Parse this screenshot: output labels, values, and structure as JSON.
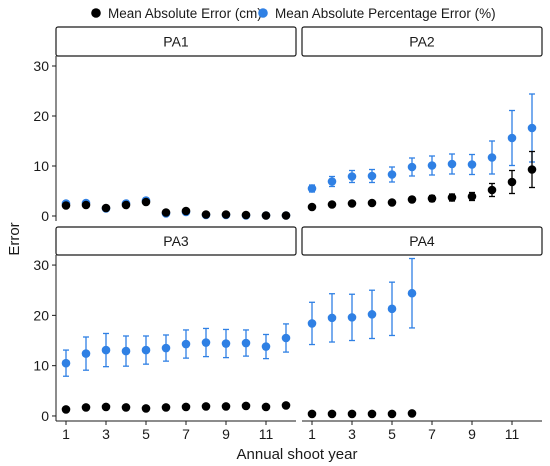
{
  "chart_data": {
    "type": "scatter",
    "xlabel": "Annual shoot year",
    "ylabel": "Error",
    "ylim": [
      -1,
      32
    ],
    "xlim": [
      0.5,
      12.5
    ],
    "y_ticks": [
      0,
      10,
      20,
      30
    ],
    "x_ticks": [
      1,
      3,
      5,
      7,
      9,
      11
    ],
    "legend_position": "top",
    "series": [
      {
        "name": "Mean Absolute Error (cm)",
        "color": "#000000"
      },
      {
        "name": "Mean Absolute Percentage Error (%)",
        "color": "#2f80e4"
      }
    ],
    "panels": [
      {
        "label": "PA1",
        "mae": {
          "x": [
            1,
            2,
            3,
            4,
            5,
            6,
            7,
            8,
            9,
            10,
            11,
            12
          ],
          "y": [
            2.1,
            2.2,
            1.6,
            2.2,
            2.8,
            0.7,
            1.0,
            0.3,
            0.3,
            0.2,
            0.1,
            0.1
          ],
          "err": [
            0,
            0,
            0,
            0,
            0,
            0,
            0,
            0,
            0,
            0,
            0,
            0
          ]
        },
        "mape": {
          "x": [
            1,
            2,
            3,
            4,
            5,
            6,
            7,
            8,
            9,
            10,
            11,
            12
          ],
          "y": [
            2.5,
            2.6,
            1.5,
            2.5,
            3.1,
            0.5,
            0.8,
            0.2,
            0.2,
            0.1,
            0.1,
            0.1
          ],
          "err": [
            0.3,
            0.3,
            0.3,
            0.4,
            0.5,
            0.4,
            0.4,
            0.2,
            0.2,
            0.1,
            0.1,
            0.1
          ]
        }
      },
      {
        "label": "PA2",
        "mae": {
          "x": [
            1,
            2,
            3,
            4,
            5,
            6,
            7,
            8,
            9,
            10,
            11,
            12
          ],
          "y": [
            1.8,
            2.3,
            2.5,
            2.6,
            2.7,
            3.3,
            3.5,
            3.7,
            3.9,
            5.2,
            6.8,
            9.3
          ],
          "err": [
            0.2,
            0.3,
            0.3,
            0.3,
            0.3,
            0.5,
            0.6,
            0.7,
            0.8,
            1.3,
            2.3,
            3.6
          ]
        },
        "mape": {
          "x": [
            1,
            2,
            3,
            4,
            5,
            6,
            7,
            8,
            9,
            10,
            11,
            12
          ],
          "y": [
            5.5,
            6.9,
            7.9,
            8.0,
            8.3,
            9.8,
            10.1,
            10.4,
            10.3,
            11.7,
            15.6,
            17.6
          ],
          "err": [
            0.7,
            1.0,
            1.2,
            1.3,
            1.5,
            1.8,
            1.9,
            2.0,
            2.0,
            3.3,
            5.5,
            6.8
          ]
        }
      },
      {
        "label": "PA3",
        "mae": {
          "x": [
            1,
            2,
            3,
            4,
            5,
            6,
            7,
            8,
            9,
            10,
            11,
            12
          ],
          "y": [
            1.3,
            1.7,
            1.8,
            1.7,
            1.5,
            1.7,
            1.8,
            1.9,
            1.9,
            2.0,
            1.8,
            2.1
          ],
          "err": [
            0,
            0,
            0,
            0,
            0,
            0,
            0,
            0,
            0,
            0,
            0,
            0
          ]
        },
        "mape": {
          "x": [
            1,
            2,
            3,
            4,
            5,
            6,
            7,
            8,
            9,
            10,
            11,
            12
          ],
          "y": [
            10.5,
            12.4,
            13.1,
            12.9,
            13.1,
            13.5,
            14.3,
            14.6,
            14.4,
            14.5,
            13.8,
            15.5
          ],
          "err": [
            2.6,
            3.3,
            3.3,
            3.0,
            2.8,
            2.6,
            2.8,
            2.8,
            2.8,
            2.6,
            2.4,
            2.8
          ]
        }
      },
      {
        "label": "PA4",
        "mae": {
          "x": [
            1,
            2,
            3,
            4,
            5,
            6
          ],
          "y": [
            0.4,
            0.4,
            0.4,
            0.4,
            0.4,
            0.5
          ],
          "err": [
            0,
            0,
            0,
            0,
            0,
            0
          ]
        },
        "mape": {
          "x": [
            1,
            2,
            3,
            4,
            5,
            6
          ],
          "y": [
            18.4,
            19.5,
            19.6,
            20.2,
            21.3,
            24.4
          ],
          "err": [
            4.2,
            4.8,
            4.6,
            4.8,
            5.3,
            6.9
          ]
        }
      }
    ]
  }
}
